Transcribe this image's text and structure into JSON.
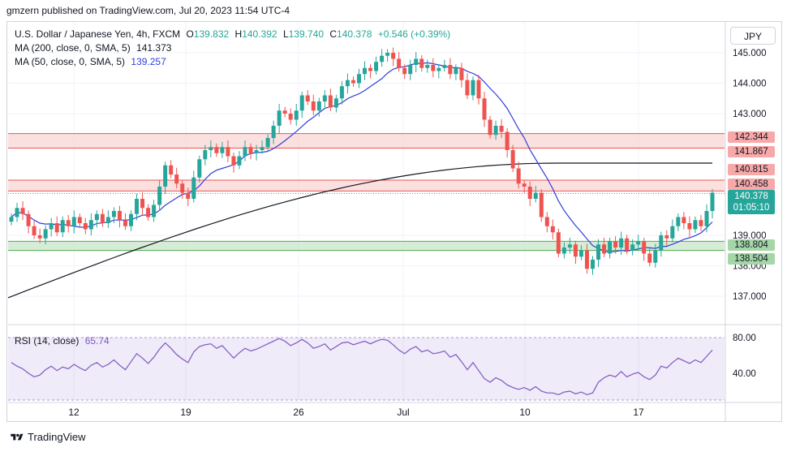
{
  "header": {
    "publisher_text": "gmzern published on TradingView.com, Jul 20, 2023 11:54 UTC-4"
  },
  "legend": {
    "symbol": "U.S. Dollar / Japanese Yen, 4h, FXCM",
    "o_label": "O",
    "o_value": "139.832",
    "h_label": "H",
    "h_value": "140.392",
    "l_label": "L",
    "l_value": "139.740",
    "c_label": "C",
    "c_value": "140.378",
    "change": "+0.546 (+0.39%)",
    "ma200_label": "MA (200, close, 0, SMA, 5)",
    "ma200_value": "141.373",
    "ma50_label": "MA (50, close, 0, SMA, 5)",
    "ma50_value": "139.257",
    "rsi_label": "RSI (14, close)",
    "rsi_value": "65.74"
  },
  "currency_button": "JPY",
  "price_labels": {
    "resistance_top": "142.344",
    "resistance_bottom": "141.867",
    "mid_top": "140.815",
    "mid_bottom": "140.458",
    "last_price": "140.378",
    "countdown": "01:05:10",
    "support_top": "138.804",
    "support_bottom": "138.504"
  },
  "footer": {
    "brand": "TradingView"
  },
  "colors": {
    "up": "#26a69a",
    "down": "#ef5350",
    "ma50": "#2f3ed9",
    "ma200": "#131722",
    "rsi": "#7e57c2",
    "resistance_zone": "#f9d5d5",
    "support_zone": "#c8e6c9"
  },
  "chart_data": [
    {
      "type": "candlestick",
      "title": "U.S. Dollar / Japanese Yen, 4h, FXCM",
      "y_ticks": [
        "145.000",
        "144.000",
        "143.000",
        "139.000",
        "138.000",
        "137.000"
      ],
      "x_ticks": [
        "12",
        "19",
        "26",
        "Jul",
        "10",
        "17"
      ],
      "ylim": [
        136.2,
        145.4
      ],
      "zones": [
        {
          "name": "resistance",
          "top": 142.344,
          "bottom": 141.867
        },
        {
          "name": "resistance",
          "top": 140.815,
          "bottom": 140.458
        },
        {
          "name": "support",
          "top": 138.804,
          "bottom": 138.504
        }
      ],
      "last_close": 140.378,
      "closes": [
        139.6,
        139.9,
        139.7,
        139.3,
        139.0,
        138.9,
        139.2,
        139.4,
        139.1,
        139.5,
        139.3,
        139.6,
        139.4,
        139.2,
        139.5,
        139.7,
        139.4,
        139.6,
        139.8,
        139.5,
        139.3,
        139.7,
        140.2,
        139.9,
        139.6,
        140.0,
        140.6,
        141.3,
        141.0,
        140.7,
        140.4,
        140.2,
        140.9,
        141.5,
        141.8,
        141.9,
        141.7,
        141.9,
        141.6,
        141.3,
        141.6,
        141.9,
        141.7,
        141.8,
        141.9,
        142.2,
        142.6,
        143.1,
        143.0,
        142.8,
        143.1,
        143.6,
        143.4,
        143.1,
        143.4,
        143.6,
        143.2,
        143.5,
        143.9,
        144.1,
        144.0,
        144.3,
        144.5,
        144.4,
        144.7,
        144.9,
        145.0,
        144.8,
        144.5,
        144.3,
        144.6,
        144.8,
        144.5,
        144.6,
        144.4,
        144.5,
        144.6,
        144.3,
        144.5,
        144.1,
        143.6,
        144.1,
        143.5,
        142.8,
        142.3,
        142.6,
        142.4,
        141.8,
        141.2,
        140.7,
        140.6,
        140.2,
        140.4,
        139.6,
        139.3,
        139.1,
        138.4,
        138.6,
        138.7,
        138.3,
        138.5,
        137.9,
        138.2,
        138.7,
        138.4,
        138.8,
        138.6,
        138.9,
        138.5,
        138.7,
        138.8,
        138.4,
        138.1,
        138.5,
        139.0,
        138.9,
        139.3,
        139.6,
        139.4,
        139.2,
        139.5,
        139.3,
        139.8,
        140.4
      ],
      "ma50_start": 139.6,
      "ma50_peak": 144.3,
      "ma50_end": 139.257,
      "ma200_start": 136.95,
      "ma200_end": 141.373
    },
    {
      "type": "line",
      "title": "RSI (14, close)",
      "y_ticks": [
        "80.00",
        "40.00"
      ],
      "ylim": [
        10,
        90
      ],
      "values": [
        52,
        48,
        45,
        40,
        36,
        38,
        44,
        48,
        43,
        47,
        45,
        50,
        46,
        43,
        49,
        52,
        47,
        50,
        55,
        49,
        44,
        53,
        62,
        57,
        51,
        58,
        67,
        74,
        68,
        61,
        56,
        52,
        64,
        70,
        72,
        73,
        68,
        71,
        64,
        57,
        63,
        68,
        65,
        67,
        70,
        73,
        76,
        79,
        76,
        71,
        74,
        78,
        74,
        68,
        70,
        73,
        66,
        70,
        74,
        75,
        72,
        74,
        76,
        73,
        76,
        78,
        77,
        72,
        66,
        62,
        67,
        70,
        64,
        66,
        62,
        63,
        65,
        58,
        61,
        53,
        44,
        52,
        43,
        34,
        30,
        35,
        32,
        27,
        24,
        22,
        24,
        21,
        25,
        20,
        18,
        18,
        16,
        19,
        20,
        17,
        19,
        16,
        18,
        30,
        35,
        38,
        36,
        42,
        36,
        39,
        41,
        36,
        33,
        38,
        48,
        46,
        52,
        57,
        54,
        51,
        55,
        52,
        59,
        66
      ]
    }
  ]
}
